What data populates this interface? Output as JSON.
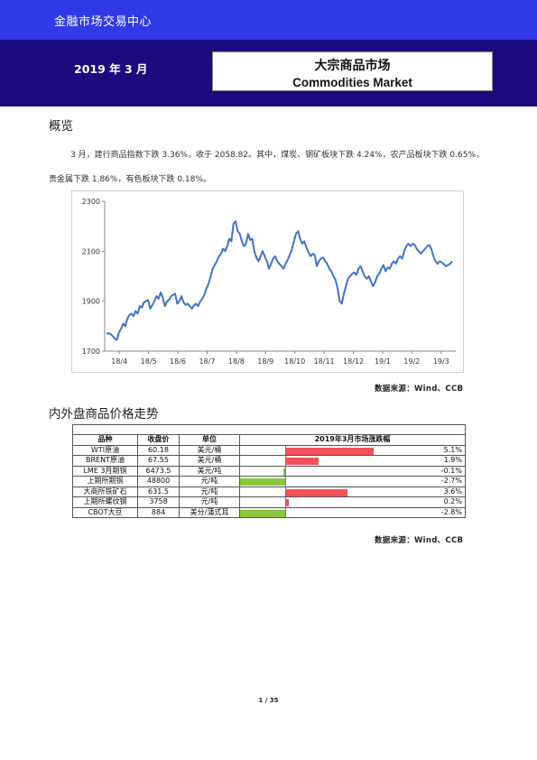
{
  "header": {
    "brand": "金融市场交易中心",
    "date": "2019 年 3 月",
    "title_cn": "大宗商品市场",
    "title_en": "Commodities Market"
  },
  "overview": {
    "heading": "概览",
    "paragraph": "3 月，建行商品指数下跌 3.36%，收于 2058.82。其中，煤炭、钢矿板块下跌 4.24%，农产品板块下跌 0.65%，贵金属下跌 1.86%，有色板块下跌 0.18%。"
  },
  "chart_data": {
    "type": "line",
    "title": "",
    "xlabel": "",
    "ylabel": "",
    "ylim": [
      1700,
      2300
    ],
    "yticks": [
      1700,
      1900,
      2100,
      2300
    ],
    "x_tick_labels": [
      "18/4",
      "18/5",
      "18/6",
      "18/7",
      "18/8",
      "18/9",
      "18/10",
      "18/11",
      "18/12",
      "19/1",
      "19/2",
      "19/3"
    ],
    "grid": false,
    "series_color": "#4472c4",
    "series": [
      {
        "values": [
          1770,
          1772,
          1768,
          1760,
          1750,
          1745,
          1775,
          1790,
          1810,
          1800,
          1830,
          1845,
          1850,
          1840,
          1860,
          1850,
          1880,
          1875,
          1895,
          1900,
          1905,
          1870,
          1885,
          1900,
          1920,
          1910,
          1935,
          1915,
          1880,
          1898,
          1905,
          1920,
          1925,
          1930,
          1890,
          1900,
          1920,
          1895,
          1885,
          1890,
          1880,
          1870,
          1882,
          1890,
          1880,
          1898,
          1910,
          1925,
          1950,
          1970,
          2000,
          2030,
          2045,
          2060,
          2080,
          2090,
          2110,
          2100,
          2120,
          2150,
          2140,
          2210,
          2220,
          2180,
          2170,
          2140,
          2120,
          2130,
          2170,
          2145,
          2150,
          2100,
          2075,
          2060,
          2080,
          2100,
          2080,
          2060,
          2030,
          2050,
          2070,
          2080,
          2060,
          2050,
          2040,
          2030,
          2050,
          2065,
          2085,
          2105,
          2140,
          2170,
          2180,
          2150,
          2130,
          2140,
          2115,
          2095,
          2080,
          2090,
          2085,
          2040,
          2060,
          2070,
          2075,
          2060,
          2050,
          2030,
          2020,
          2000,
          1985,
          1950,
          1900,
          1890,
          1930,
          1960,
          1990,
          2000,
          2010,
          2015,
          2005,
          2030,
          2040,
          2020,
          2000,
          1990,
          2000,
          1980,
          1960,
          1975,
          2000,
          2010,
          2030,
          2045,
          2020,
          2035,
          2030,
          2050,
          2060,
          2050,
          2070,
          2080,
          2070,
          2100,
          2120,
          2130,
          2120,
          2130,
          2125,
          2110,
          2100,
          2090,
          2100,
          2110,
          2120,
          2125,
          2110,
          2080,
          2060,
          2050,
          2060,
          2055,
          2048,
          2040,
          2045,
          2050,
          2060
        ]
      }
    ]
  },
  "source_1": "数据来源：Wind、CCB",
  "section2": {
    "heading": "内外盘商品价格走势"
  },
  "table": {
    "headers": {
      "name": "品种",
      "close": "收盘价",
      "unit": "单位",
      "change": "2019年3月市场涨跌幅"
    },
    "rows": [
      {
        "name": "WTI原油",
        "close": "60.18",
        "unit": "美元/桶",
        "pct": 5.1,
        "label": "5.1%"
      },
      {
        "name": "BRENT原油",
        "close": "67.55",
        "unit": "美元/桶",
        "pct": 1.9,
        "label": "1.9%"
      },
      {
        "name": "LME 3月期铜",
        "close": "6473.5",
        "unit": "美元/吨",
        "pct": -0.1,
        "label": "-0.1%"
      },
      {
        "name": "上期所期铜",
        "close": "48800",
        "unit": "元/吨",
        "pct": -2.7,
        "label": "-2.7%"
      },
      {
        "name": "大商所铁矿石",
        "close": "631.5",
        "unit": "元/吨",
        "pct": 3.6,
        "label": "3.6%"
      },
      {
        "name": "上期所螺纹钢",
        "close": "3758",
        "unit": "元/吨",
        "pct": 0.2,
        "label": "0.2%"
      },
      {
        "name": "CBOT大豆",
        "close": "884",
        "unit": "美分/蒲式耳",
        "pct": -2.8,
        "label": "-2.8%"
      }
    ],
    "positive_color": "#f4515c",
    "negative_color": "#8cc63f"
  },
  "source_2": "数据来源：Wind、CCB",
  "page_number": "1 / 35"
}
